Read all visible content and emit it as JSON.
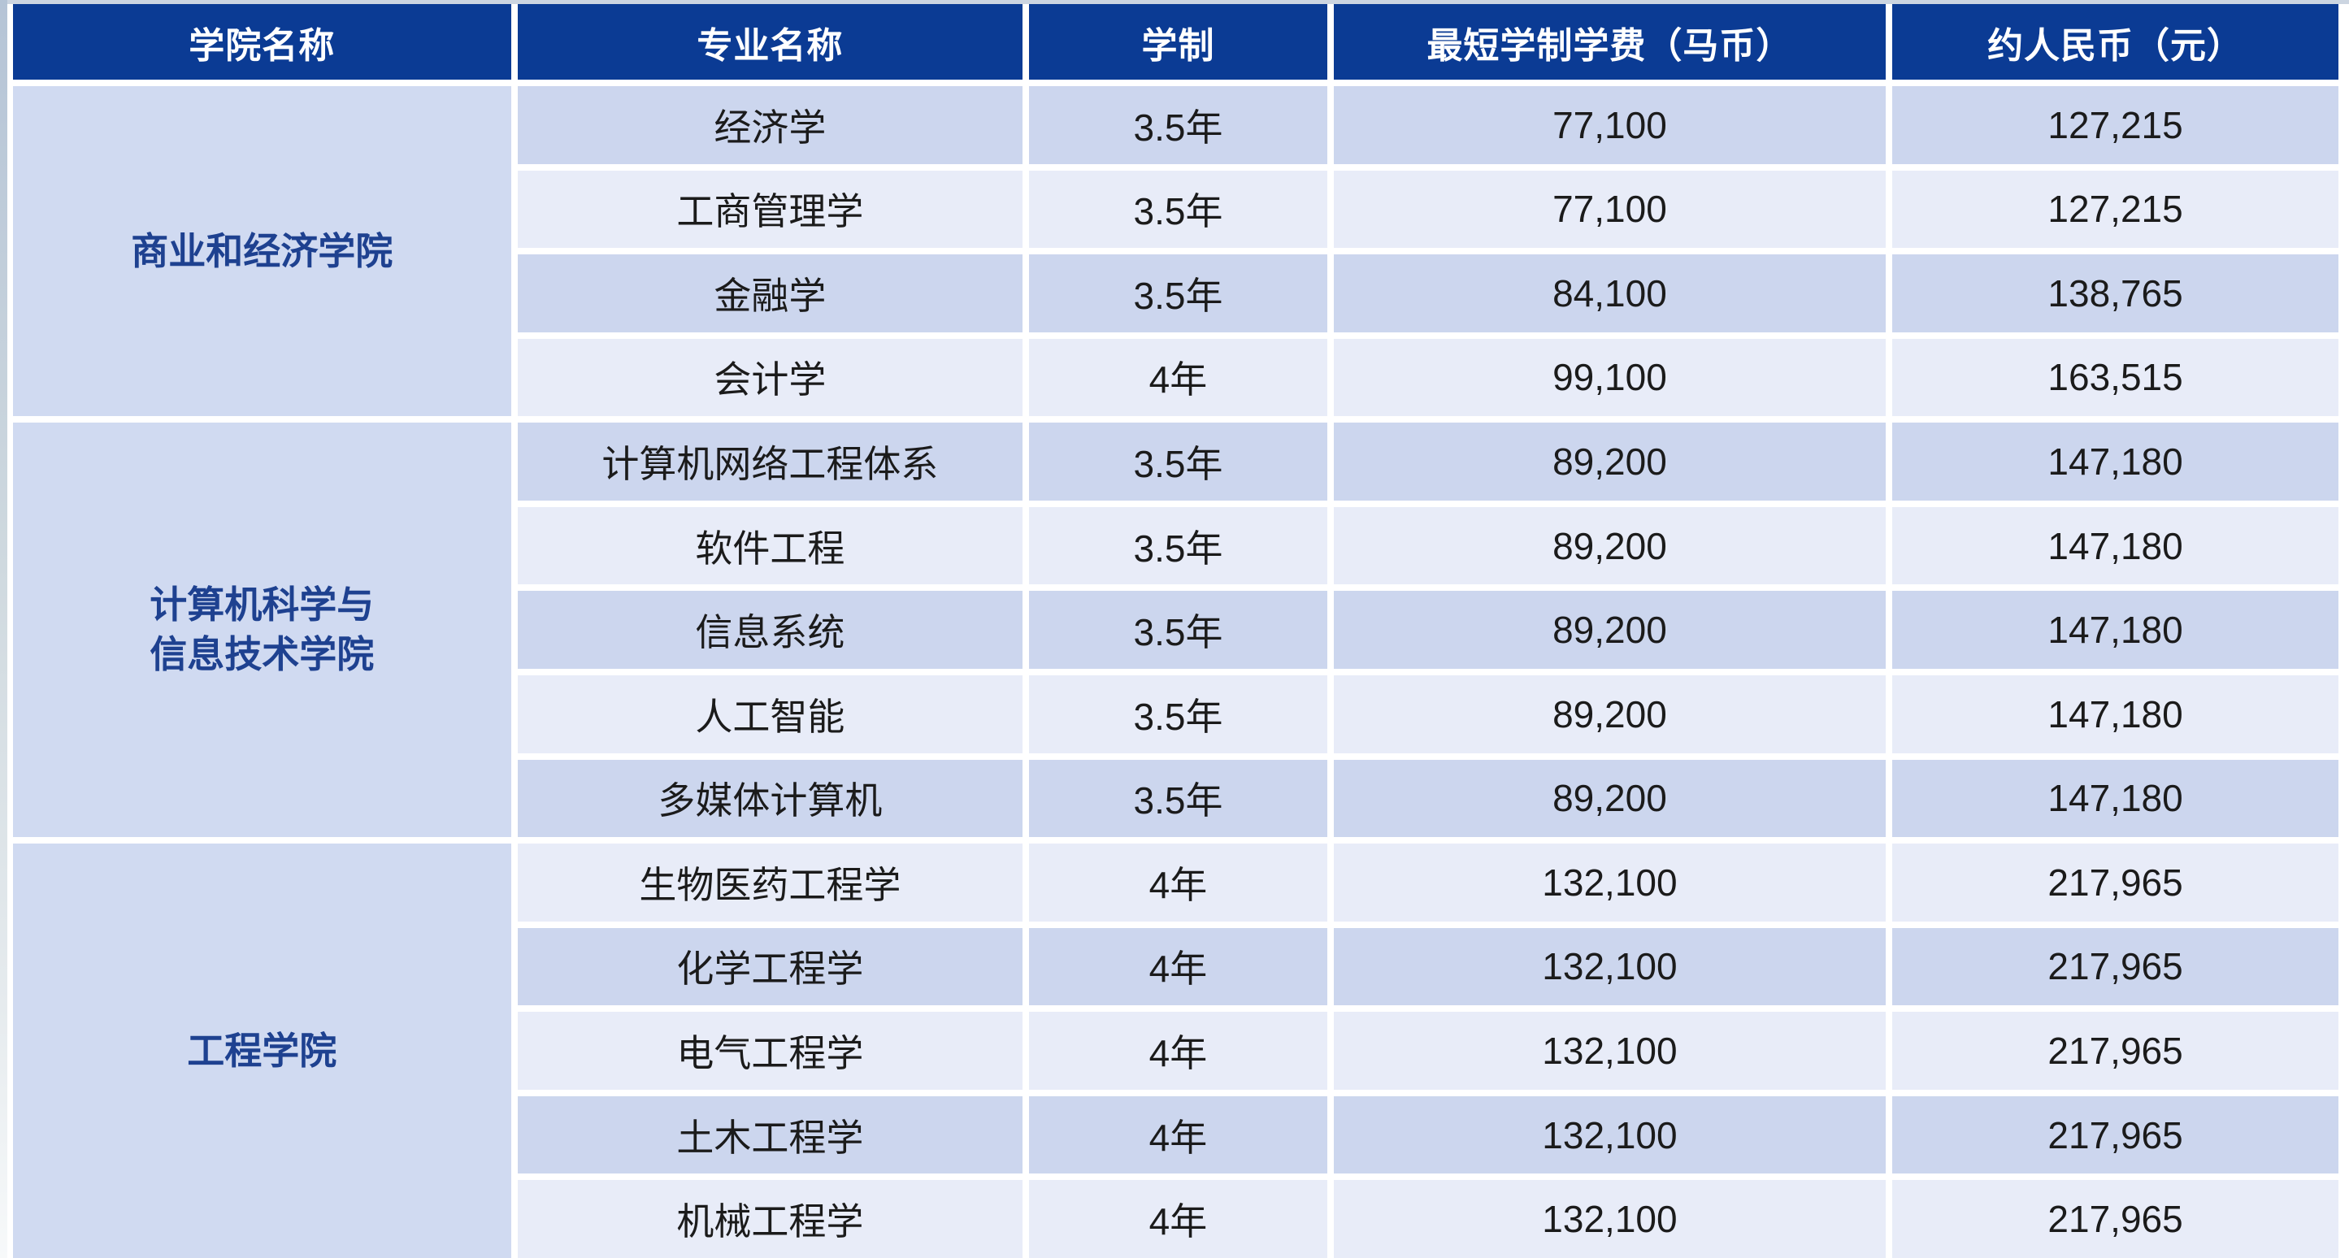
{
  "colors": {
    "header_bg": "#0b3b94",
    "header_text": "#ffffff",
    "college_text": "#1e4190",
    "college_cell_bg": "#d0daf1",
    "row_dark_bg": "#ccd6ee",
    "row_light_bg": "#e8ecf8",
    "body_text": "#1b1b1b",
    "top_strip": "#ccd5e1",
    "left_strip_top": "#b5c4d6",
    "left_strip_bottom": "#f7f9fa"
  },
  "table": {
    "columns": [
      {
        "key": "college",
        "label": "学院名称"
      },
      {
        "key": "major",
        "label": "专业名称"
      },
      {
        "key": "duration",
        "label": "学制"
      },
      {
        "key": "fee-myr",
        "label": "最短学制学费（马币）"
      },
      {
        "key": "fee-cny",
        "label": "约人民币（元）"
      }
    ],
    "groups": [
      {
        "college_lines": [
          "商业和经济学院"
        ],
        "rows": [
          {
            "major": "经济学",
            "duration": "3.5年",
            "fee_myr": "77,100",
            "fee_cny": "127,215"
          },
          {
            "major": "工商管理学",
            "duration": "3.5年",
            "fee_myr": "77,100",
            "fee_cny": "127,215"
          },
          {
            "major": "金融学",
            "duration": "3.5年",
            "fee_myr": "84,100",
            "fee_cny": "138,765"
          },
          {
            "major": "会计学",
            "duration": "4年",
            "fee_myr": "99,100",
            "fee_cny": "163,515"
          }
        ]
      },
      {
        "college_lines": [
          "计算机科学与",
          "信息技术学院"
        ],
        "rows": [
          {
            "major": "计算机网络工程体系",
            "duration": "3.5年",
            "fee_myr": "89,200",
            "fee_cny": "147,180"
          },
          {
            "major": "软件工程",
            "duration": "3.5年",
            "fee_myr": "89,200",
            "fee_cny": "147,180"
          },
          {
            "major": "信息系统",
            "duration": "3.5年",
            "fee_myr": "89,200",
            "fee_cny": "147,180"
          },
          {
            "major": "人工智能",
            "duration": "3.5年",
            "fee_myr": "89,200",
            "fee_cny": "147,180"
          },
          {
            "major": "多媒体计算机",
            "duration": "3.5年",
            "fee_myr": "89,200",
            "fee_cny": "147,180"
          }
        ]
      },
      {
        "college_lines": [
          "工程学院"
        ],
        "rows": [
          {
            "major": "生物医药工程学",
            "duration": "4年",
            "fee_myr": "132,100",
            "fee_cny": "217,965"
          },
          {
            "major": "化学工程学",
            "duration": "4年",
            "fee_myr": "132,100",
            "fee_cny": "217,965"
          },
          {
            "major": "电气工程学",
            "duration": "4年",
            "fee_myr": "132,100",
            "fee_cny": "217,965"
          },
          {
            "major": "土木工程学",
            "duration": "4年",
            "fee_myr": "132,100",
            "fee_cny": "217,965"
          },
          {
            "major": "机械工程学",
            "duration": "4年",
            "fee_myr": "132,100",
            "fee_cny": "217,965"
          }
        ]
      }
    ]
  }
}
